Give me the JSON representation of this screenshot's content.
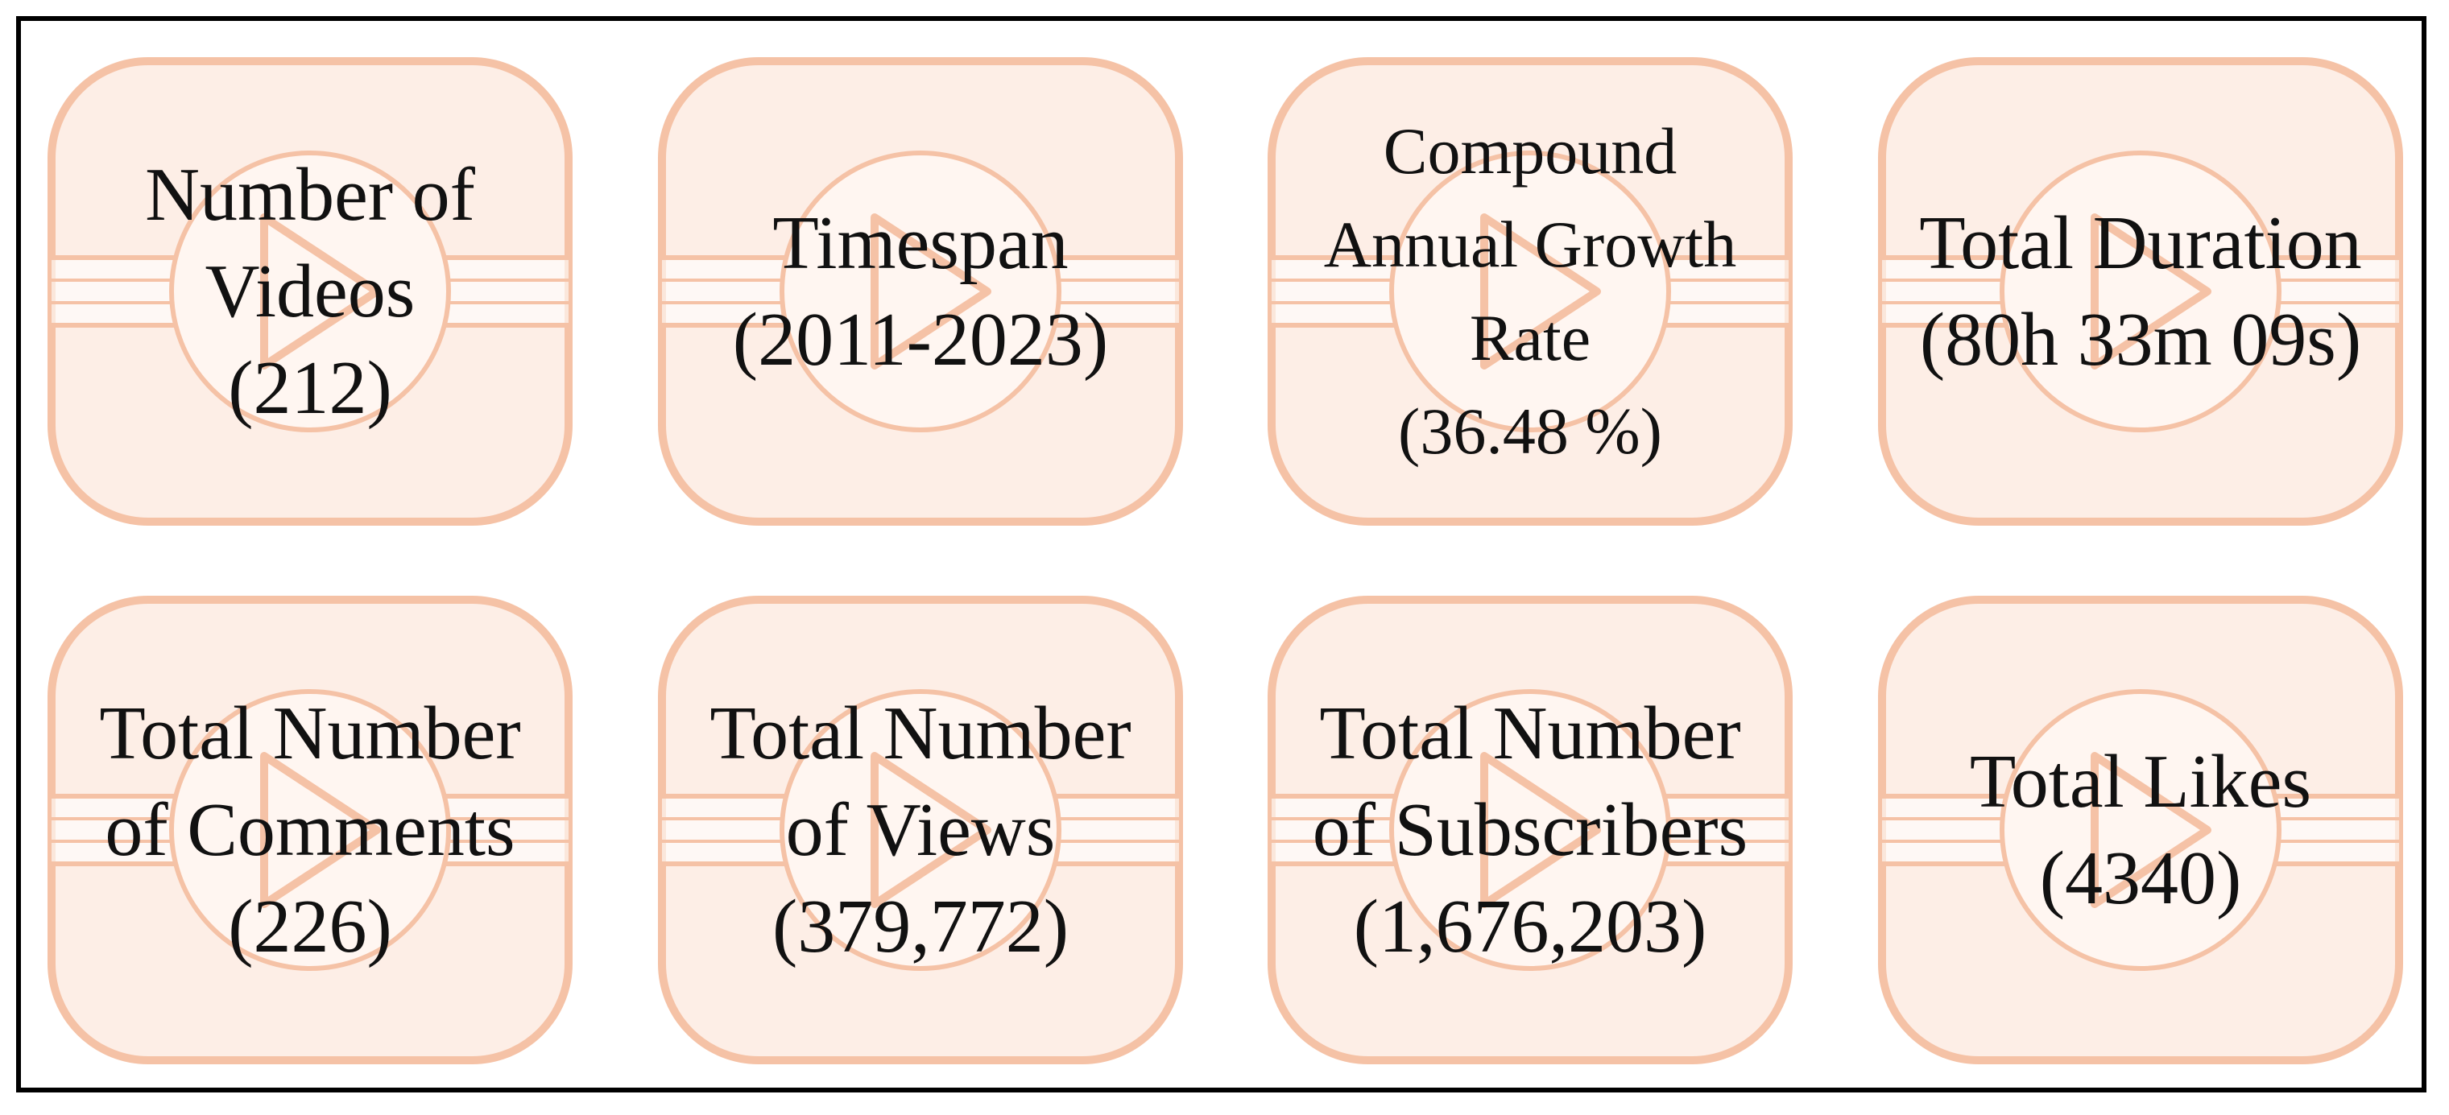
{
  "colors": {
    "tile_fill": "#fdeee6",
    "tile_stroke": "#f5c2a6",
    "text": "#111111",
    "frame": "#000000"
  },
  "tile_icon": "play-button-icon",
  "tiles": [
    {
      "lines": [
        "Number of",
        "Videos",
        "(212)"
      ]
    },
    {
      "lines": [
        "Timespan",
        "(2011-2023)"
      ]
    },
    {
      "lines": [
        "Compound",
        "Annual Growth",
        "Rate",
        "(36.48 %)"
      ]
    },
    {
      "lines": [
        "Total Duration",
        "(80h 33m 09s)"
      ]
    },
    {
      "lines": [
        "Total Number",
        "of Comments",
        "(226)"
      ]
    },
    {
      "lines": [
        "Total Number",
        "of Views",
        "(379,772)"
      ]
    },
    {
      "lines": [
        "Total Number",
        "of Subscribers",
        "(1,676,203)"
      ]
    },
    {
      "lines": [
        "Total Likes",
        "(4340)"
      ]
    }
  ]
}
